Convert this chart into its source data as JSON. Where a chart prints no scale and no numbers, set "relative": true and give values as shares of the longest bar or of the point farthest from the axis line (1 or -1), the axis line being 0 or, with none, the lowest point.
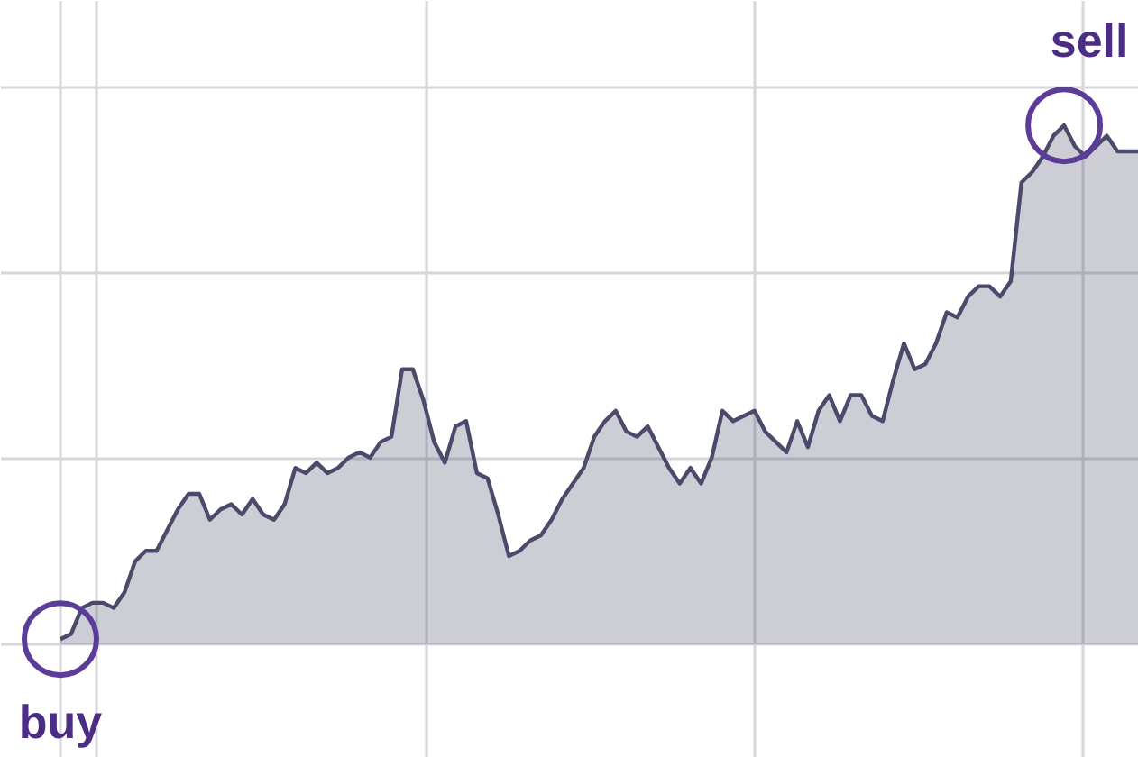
{
  "chart_data": {
    "type": "area",
    "relative": true,
    "grid": true,
    "categories": [
      null,
      null,
      null,
      null,
      null,
      null,
      null,
      null,
      null,
      null,
      null,
      null,
      null,
      null,
      null,
      null,
      null,
      null,
      null,
      null,
      null,
      null,
      null,
      null,
      null,
      null,
      null,
      null,
      null,
      null,
      null,
      null,
      null,
      null,
      null,
      null,
      null,
      null,
      null,
      null,
      null,
      null,
      null,
      null,
      null,
      null,
      null,
      null,
      null,
      null,
      null,
      null,
      null,
      null,
      null,
      null,
      null,
      null,
      null,
      null,
      null,
      null,
      null,
      null,
      null,
      null,
      null,
      null,
      null,
      null,
      null,
      null,
      null,
      null,
      null,
      null,
      null,
      null,
      null,
      null,
      null,
      null,
      null,
      null,
      null,
      null,
      null,
      null,
      null,
      null,
      null,
      null,
      null,
      null,
      null,
      null,
      null,
      null,
      null,
      null,
      null,
      null
    ],
    "series": [
      {
        "color": "#4a4a6a",
        "values": [
          0.01,
          0.02,
          0.07,
          0.08,
          0.08,
          0.07,
          0.1,
          0.16,
          0.18,
          0.18,
          0.22,
          0.26,
          0.29,
          0.29,
          0.24,
          0.26,
          0.27,
          0.25,
          0.28,
          0.25,
          0.24,
          0.27,
          0.34,
          0.33,
          0.35,
          0.33,
          0.34,
          0.36,
          0.37,
          0.36,
          0.39,
          0.4,
          0.53,
          0.53,
          0.47,
          0.39,
          0.35,
          0.42,
          0.43,
          0.33,
          0.32,
          0.25,
          0.17,
          0.18,
          0.2,
          0.21,
          0.24,
          0.28,
          0.31,
          0.34,
          0.4,
          0.43,
          0.45,
          0.41,
          0.4,
          0.42,
          0.38,
          0.34,
          0.31,
          0.34,
          0.31,
          0.36,
          0.45,
          0.43,
          0.44,
          0.45,
          0.41,
          0.39,
          0.37,
          0.43,
          0.38,
          0.45,
          0.48,
          0.43,
          0.48,
          0.48,
          0.44,
          0.43,
          0.51,
          0.58,
          0.53,
          0.54,
          0.58,
          0.64,
          0.63,
          0.67,
          0.69,
          0.69,
          0.67,
          0.7,
          0.89,
          0.91,
          0.94,
          0.98,
          1,
          0.96,
          0.94,
          0.96,
          0.98,
          0.95,
          0.95,
          0.95
        ]
      }
    ],
    "annotations": [
      {
        "text": "buy",
        "y": 0.01
      },
      {
        "text": "sell",
        "y": 1
      }
    ]
  }
}
